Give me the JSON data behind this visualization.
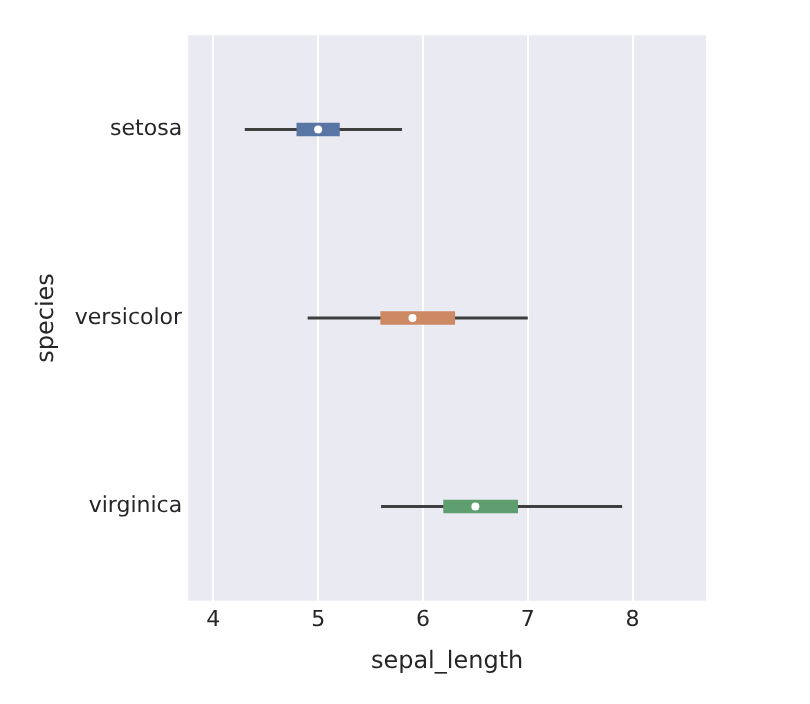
{
  "chart_data": {
    "type": "box",
    "orientation": "horizontal",
    "xlabel": "sepal_length",
    "ylabel": "species",
    "categories": [
      "setosa",
      "versicolor",
      "virginica"
    ],
    "colors": [
      "#5875a4",
      "#cc8963",
      "#5f9e6e"
    ],
    "boxes": [
      {
        "low": 4.3,
        "q1": 4.8,
        "median": 5.0,
        "q3": 5.2,
        "high": 5.8
      },
      {
        "low": 4.9,
        "q1": 5.6,
        "median": 5.9,
        "q3": 6.3,
        "high": 7.0
      },
      {
        "low": 5.6,
        "q1": 6.2,
        "median": 6.5,
        "q3": 6.9,
        "high": 7.9
      }
    ],
    "xlim": [
      3.76,
      8.7
    ],
    "xticks": [
      4,
      5,
      6,
      7,
      8
    ],
    "grid": "x",
    "legend": false
  }
}
